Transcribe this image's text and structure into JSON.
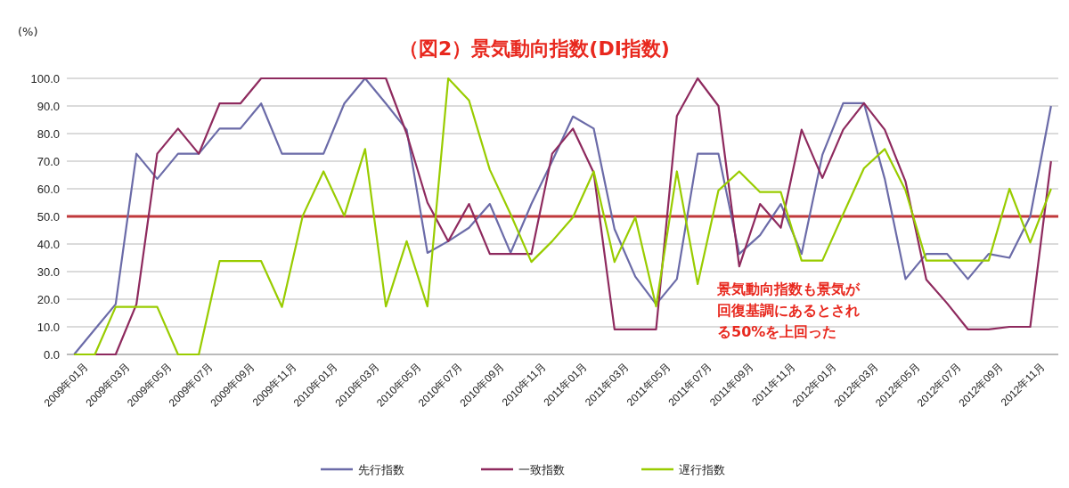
{
  "chart_data": {
    "type": "line",
    "title": "（図2）景気動向指数(DI指数)",
    "ylabel": "(%)",
    "categories": [
      "2009年01月",
      null,
      "2009年03月",
      null,
      "2009年05月",
      null,
      "2009年07月",
      null,
      "2009年09月",
      null,
      "2009年11月",
      null,
      "2010年01月",
      null,
      "2010年03月",
      null,
      "2010年05月",
      null,
      "2010年07月",
      null,
      "2010年09月",
      null,
      "2010年11月",
      null,
      "2011年01月",
      null,
      "2011年03月",
      null,
      "2011年05月",
      null,
      "2011年07月",
      null,
      "2011年09月",
      null,
      "2011年11月",
      null,
      "2012年01月",
      null,
      "2012年03月",
      null,
      "2012年05月",
      null,
      "2012年07月",
      null,
      "2012年09月",
      null,
      "2012年11月",
      null
    ],
    "series": [
      {
        "name": "先行指数",
        "color": "#6b6ba8",
        "values": [
          0,
          9.1,
          18.2,
          72.7,
          63.6,
          72.7,
          72.7,
          81.8,
          81.8,
          90.9,
          72.7,
          72.7,
          72.7,
          90.9,
          100,
          90.9,
          81.4,
          36.8,
          41,
          45.9,
          54.5,
          36.8,
          54.5,
          70,
          86.2,
          81.8,
          45.4,
          28.2,
          18.2,
          27.3,
          72.7,
          72.7,
          36.4,
          43.2,
          54.5,
          36.4,
          72.3,
          91,
          91,
          63.6,
          27.3,
          36.4,
          36.4,
          27.3,
          36.4,
          35,
          50,
          90
        ]
      },
      {
        "name": "一致指数",
        "color": "#8e2a5e",
        "values": [
          0,
          0,
          0,
          18.2,
          72.7,
          81.8,
          72.7,
          90.9,
          90.9,
          100,
          100,
          100,
          100,
          100,
          100,
          100,
          80,
          55,
          41,
          54.5,
          36.4,
          36.4,
          36.4,
          72.7,
          81.8,
          65.8,
          9.1,
          9.1,
          9.1,
          86.4,
          100,
          90,
          31.9,
          54.5,
          45.9,
          81.4,
          63.9,
          81.4,
          91,
          81.4,
          62.6,
          27.1,
          18.5,
          9.1,
          9.1,
          10,
          10,
          70
        ]
      },
      {
        "name": "遅行指数",
        "color": "#99cc00",
        "values": [
          0,
          0,
          17.2,
          17.2,
          17.2,
          0,
          0,
          33.8,
          33.8,
          33.8,
          17.2,
          50.2,
          66.3,
          50.2,
          74.4,
          17.4,
          41,
          17.4,
          100,
          92,
          66.9,
          50.8,
          33.5,
          41,
          49.7,
          66.3,
          33.5,
          49.7,
          17.4,
          66.3,
          25.5,
          59.4,
          66.3,
          58.8,
          58.8,
          34,
          34,
          50.8,
          67.4,
          74.4,
          59.4,
          34,
          34,
          34,
          34,
          60,
          40.5,
          60
        ]
      }
    ],
    "ylim": [
      0,
      100
    ],
    "yticks": [
      {
        "value": 0,
        "label": "0.0"
      },
      {
        "value": 10,
        "label": "10.0"
      },
      {
        "value": 20,
        "label": "20.0"
      },
      {
        "value": 30,
        "label": "30.0"
      },
      {
        "value": 40,
        "label": "40.0"
      },
      {
        "value": 50,
        "label": "50.0"
      },
      {
        "value": 60,
        "label": "60.0"
      },
      {
        "value": 70,
        "label": "70.0"
      },
      {
        "value": 80,
        "label": "80.0"
      },
      {
        "value": 90,
        "label": "90.0"
      },
      {
        "value": 100,
        "label": "100.0"
      }
    ],
    "grid": "y",
    "legend": "bottom",
    "marker": "none",
    "line_style": "solid",
    "ref_lines": [
      {
        "axis": "y",
        "value": 50,
        "color": "#c0393b"
      }
    ],
    "annotations": [
      "景気動向指数も景気が回復基調にあるとされる50%を上回った"
    ]
  }
}
